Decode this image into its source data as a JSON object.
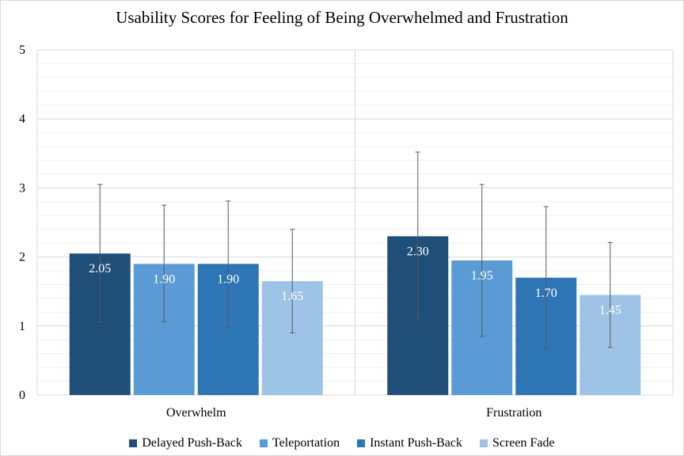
{
  "chart_data": {
    "type": "bar",
    "title": "Usability Scores for Feeling of Being Overwhelmed and Frustration",
    "categories": [
      "Overwhelm",
      "Frustration"
    ],
    "series": [
      {
        "name": "Delayed Push-Back",
        "color": "#1f4e79",
        "values": [
          2.05,
          2.3
        ],
        "labels": [
          "2.05",
          "2.30"
        ],
        "error_low": [
          1.06,
          1.09
        ],
        "error_high": [
          3.05,
          3.52
        ]
      },
      {
        "name": "Teleportation",
        "color": "#5b9bd5",
        "values": [
          1.9,
          1.95
        ],
        "labels": [
          "1.90",
          "1.95"
        ],
        "error_low": [
          1.06,
          0.85
        ],
        "error_high": [
          2.75,
          3.05
        ]
      },
      {
        "name": "Instant Push-Back",
        "color": "#2e75b6",
        "values": [
          1.9,
          1.7
        ],
        "labels": [
          "1.90",
          "1.70"
        ],
        "error_low": [
          0.98,
          0.67
        ],
        "error_high": [
          2.81,
          2.73
        ]
      },
      {
        "name": "Screen Fade",
        "color": "#9dc3e6",
        "values": [
          1.65,
          1.45
        ],
        "labels": [
          "1.65",
          "1.45"
        ],
        "error_low": [
          0.9,
          0.69
        ],
        "error_high": [
          2.4,
          2.21
        ]
      }
    ],
    "ylim": [
      0,
      5
    ],
    "yticks": [
      "0",
      "1",
      "2",
      "3",
      "4",
      "5"
    ],
    "grid": true,
    "legend": "bottom"
  }
}
